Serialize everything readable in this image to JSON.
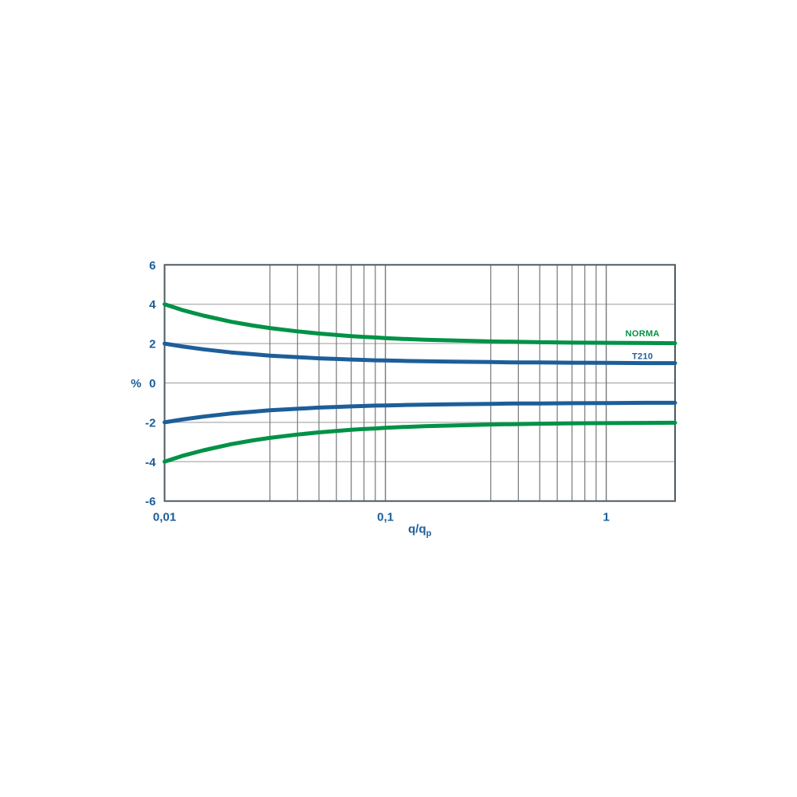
{
  "page": {
    "background": "#ffffff"
  },
  "chart_data": {
    "type": "line",
    "title": "",
    "x_axis": {
      "label": "q/q",
      "label_subscript": "p",
      "scale": "log",
      "range": [
        0.01,
        2.05
      ],
      "ticks": [
        {
          "value": 0.01,
          "label": "0,01"
        },
        {
          "value": 0.1,
          "label": "0,1"
        },
        {
          "value": 1,
          "label": "1"
        }
      ],
      "gridlines_major": [
        0.1,
        1
      ],
      "gridlines_minor": [
        0.03,
        0.04,
        0.05,
        0.06,
        0.07,
        0.08,
        0.09,
        0.3,
        0.4,
        0.5,
        0.6,
        0.7,
        0.8,
        0.9
      ]
    },
    "y_axis": {
      "label": "%",
      "scale": "linear",
      "range": [
        -6,
        6
      ],
      "ticks": [
        {
          "value": 6,
          "label": "6"
        },
        {
          "value": 4,
          "label": "4"
        },
        {
          "value": 2,
          "label": "2"
        },
        {
          "value": 0,
          "label": "0"
        },
        {
          "value": -2,
          "label": "-2"
        },
        {
          "value": -4,
          "label": "-4"
        },
        {
          "value": -6,
          "label": "-6"
        }
      ],
      "gridlines": [
        4,
        2,
        0,
        -2,
        -4
      ]
    },
    "series": [
      {
        "name": "NORMA upper limit",
        "color": "#009247",
        "x": [
          0.01,
          0.012,
          0.015,
          0.02,
          0.025,
          0.03,
          0.04,
          0.05,
          0.06,
          0.07,
          0.08,
          0.09,
          0.1,
          0.12,
          0.15,
          0.2,
          0.3,
          0.4,
          0.5,
          0.7,
          1.0,
          1.5,
          2.05
        ],
        "y": [
          4.0,
          3.71,
          3.42,
          3.11,
          2.92,
          2.79,
          2.62,
          2.51,
          2.44,
          2.38,
          2.34,
          2.31,
          2.28,
          2.24,
          2.2,
          2.16,
          2.11,
          2.09,
          2.07,
          2.05,
          2.04,
          2.03,
          2.02
        ]
      },
      {
        "name": "NORMA lower limit",
        "color": "#009247",
        "x": [
          0.01,
          0.012,
          0.015,
          0.02,
          0.025,
          0.03,
          0.04,
          0.05,
          0.06,
          0.07,
          0.08,
          0.09,
          0.1,
          0.12,
          0.15,
          0.2,
          0.3,
          0.4,
          0.5,
          0.7,
          1.0,
          1.5,
          2.05
        ],
        "y": [
          -4.0,
          -3.71,
          -3.42,
          -3.11,
          -2.92,
          -2.79,
          -2.62,
          -2.51,
          -2.44,
          -2.38,
          -2.34,
          -2.31,
          -2.28,
          -2.24,
          -2.2,
          -2.16,
          -2.11,
          -2.09,
          -2.07,
          -2.05,
          -2.04,
          -2.03,
          -2.02
        ]
      },
      {
        "name": "T210 upper error",
        "color": "#1d5e99",
        "x": [
          0.01,
          0.012,
          0.015,
          0.02,
          0.025,
          0.03,
          0.04,
          0.05,
          0.06,
          0.07,
          0.08,
          0.09,
          0.1,
          0.12,
          0.15,
          0.2,
          0.3,
          0.4,
          0.5,
          0.7,
          1.0,
          1.5,
          2.05
        ],
        "y": [
          2.0,
          1.86,
          1.71,
          1.55,
          1.46,
          1.39,
          1.31,
          1.25,
          1.22,
          1.19,
          1.17,
          1.15,
          1.14,
          1.12,
          1.1,
          1.08,
          1.06,
          1.04,
          1.04,
          1.03,
          1.02,
          1.01,
          1.01
        ]
      },
      {
        "name": "T210 lower error",
        "color": "#1d5e99",
        "x": [
          0.01,
          0.012,
          0.015,
          0.02,
          0.025,
          0.03,
          0.04,
          0.05,
          0.06,
          0.07,
          0.08,
          0.09,
          0.1,
          0.12,
          0.15,
          0.2,
          0.3,
          0.4,
          0.5,
          0.7,
          1.0,
          1.5,
          2.05
        ],
        "y": [
          -2.0,
          -1.86,
          -1.71,
          -1.55,
          -1.46,
          -1.39,
          -1.31,
          -1.25,
          -1.22,
          -1.19,
          -1.17,
          -1.15,
          -1.14,
          -1.12,
          -1.1,
          -1.08,
          -1.06,
          -1.04,
          -1.04,
          -1.03,
          -1.02,
          -1.01,
          -1.01
        ]
      }
    ],
    "annotations": [
      {
        "text": "NORMA",
        "color": "#009247",
        "x": 1.46,
        "y": 2.54
      },
      {
        "text": "T210",
        "color": "#1d5e99",
        "x": 1.46,
        "y": 1.37
      }
    ],
    "legend_position": "inside-right",
    "grid": true,
    "colors": {
      "grid_horizontal": "#b5b5b5",
      "grid_vertical": "#75797d",
      "plot_border": "#4e5a61",
      "tick_text": "#1d5e99"
    }
  }
}
